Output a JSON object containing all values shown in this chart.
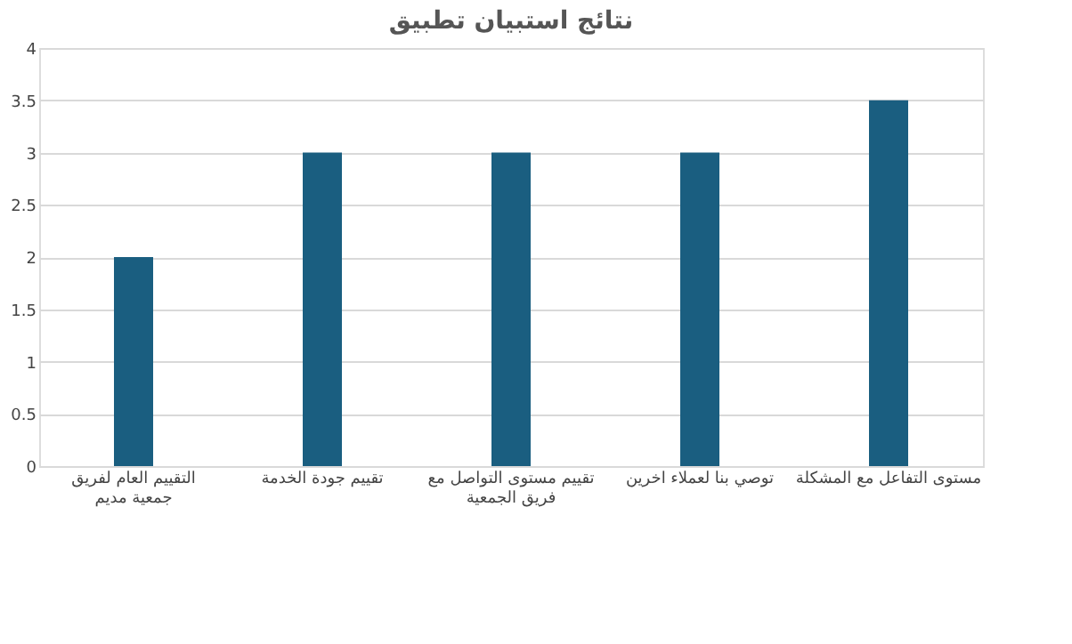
{
  "chart_data": {
    "type": "bar",
    "title": "نتائج استبيان تطبيق",
    "categories": [
      "التقييم العام لفريق جمعية مديم",
      "تقييم جودة الخدمة",
      "تقييم مستوى التواصل مع فريق الجمعية",
      "توصي بنا لعملاء اخرين",
      "مستوى التفاعل مع المشكلة"
    ],
    "values": [
      2,
      3,
      3,
      3,
      3.5
    ],
    "color": "#1a5e80",
    "ylim": [
      0,
      4
    ],
    "yticks": [
      0,
      0.5,
      1,
      1.5,
      2,
      2.5,
      3,
      3.5,
      4
    ],
    "grid": "y"
  }
}
